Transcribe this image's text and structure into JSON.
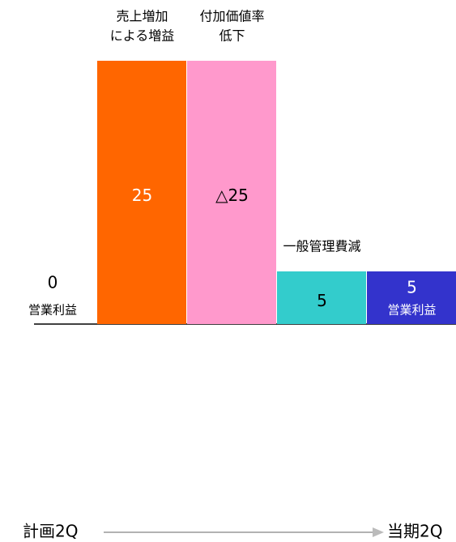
{
  "chart_data": {
    "type": "waterfall",
    "start": {
      "value": 0,
      "label": "営業利益"
    },
    "categories": [
      [
        "売上増加",
        "による増益"
      ],
      [
        "付加価値率",
        "低下"
      ],
      [
        "一般管理費減"
      ]
    ],
    "values": [
      25,
      -25,
      5
    ],
    "value_labels": [
      "25",
      "△25",
      "5"
    ],
    "colors": [
      "#ff6600",
      "#ff99cc",
      "#33cccc"
    ],
    "end": {
      "value": 5,
      "label": "営業利益",
      "color": "#3333cc"
    },
    "ylim": [
      0,
      25
    ],
    "from": "計画2Q",
    "to": "当期2Q"
  }
}
